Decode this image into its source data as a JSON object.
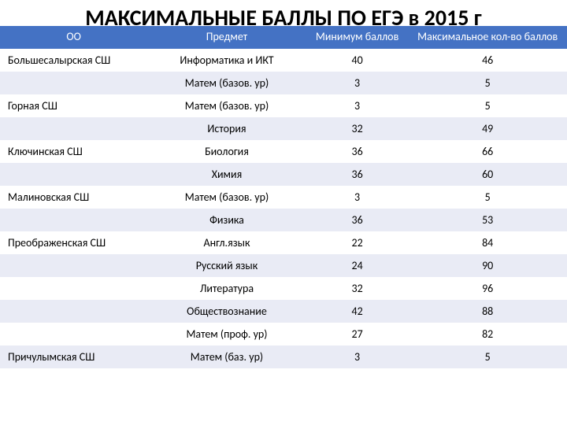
{
  "title": "МАКСИМАЛЬНЫЕ БАЛЛЫ ПО ЕГЭ в 2015 г",
  "table": {
    "headers": {
      "oo": "ОО",
      "subject": "Предмет",
      "min": "Минимум баллов",
      "max": "Максимальное кол-во баллов"
    },
    "rows": [
      {
        "oo": "Большесалырская СШ",
        "subject": "Информатика и ИКТ",
        "min": "40",
        "max": "46"
      },
      {
        "oo": "",
        "subject": "Матем (базов. ур)",
        "min": "3",
        "max": "5"
      },
      {
        "oo": "Горная СШ",
        "subject": "Матем (базов. ур)",
        "min": "3",
        "max": "5"
      },
      {
        "oo": "",
        "subject": "История",
        "min": "32",
        "max": "49"
      },
      {
        "oo": "Ключинская СШ",
        "subject": "Биология",
        "min": "36",
        "max": "66"
      },
      {
        "oo": "",
        "subject": "Химия",
        "min": "36",
        "max": "60"
      },
      {
        "oo": "Малиновская СШ",
        "subject": "Матем (базов. ур)",
        "min": "3",
        "max": "5"
      },
      {
        "oo": "",
        "subject": "Физика",
        "min": "36",
        "max": "53"
      },
      {
        "oo": "Преображенская СШ",
        "subject": "Англ.язык",
        "min": "22",
        "max": "84"
      },
      {
        "oo": "",
        "subject": "Русский язык",
        "min": "24",
        "max": "90"
      },
      {
        "oo": "",
        "subject": "Литература",
        "min": "32",
        "max": "96"
      },
      {
        "oo": "",
        "subject": "Обществознание",
        "min": "42",
        "max": "88"
      },
      {
        "oo": "",
        "subject": "Матем (проф. ур)",
        "min": "27",
        "max": "82"
      },
      {
        "oo": "Причулымская СШ",
        "subject": "Матем (баз. ур)",
        "min": "3",
        "max": "5"
      }
    ],
    "colors": {
      "header_bg": "#4472c4",
      "header_text": "#ffffff",
      "row_odd_bg": "#ffffff",
      "row_even_bg": "#e9ebf5",
      "text": "#000000"
    }
  }
}
